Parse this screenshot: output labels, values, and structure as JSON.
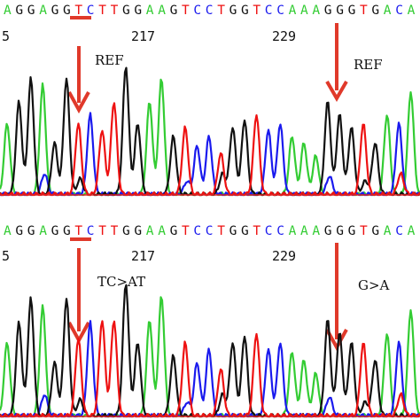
{
  "colors": {
    "A": "#33cc33",
    "C": "#1a1aee",
    "G": "#111111",
    "T": "#ee1111",
    "arrow": "#e0392a",
    "baseline": "#dd2222"
  },
  "panels": [
    {
      "id": "top",
      "sequence": "AGGAGGTCTTGGAAGTCCTGGTCCAAAGGGTGACA",
      "positions": [
        "5",
        "217",
        "229"
      ],
      "underline_bases": [
        7,
        8
      ],
      "annotations": [
        {
          "id": "left",
          "label": "REF",
          "target_base": 8
        },
        {
          "id": "right",
          "label": "REF",
          "target_base": 27
        }
      ]
    },
    {
      "id": "bottom",
      "sequence": "AGGAGGTCTTGGAAGTCCTGGTCCAAAGGGTGACA",
      "positions": [
        "5",
        "217",
        "229"
      ],
      "underline_bases": [
        7,
        8
      ],
      "annotations": [
        {
          "id": "left",
          "label": "TC>AT",
          "target_base": 7
        },
        {
          "id": "right",
          "label": "G>A",
          "target_base": 27
        }
      ]
    }
  ]
}
